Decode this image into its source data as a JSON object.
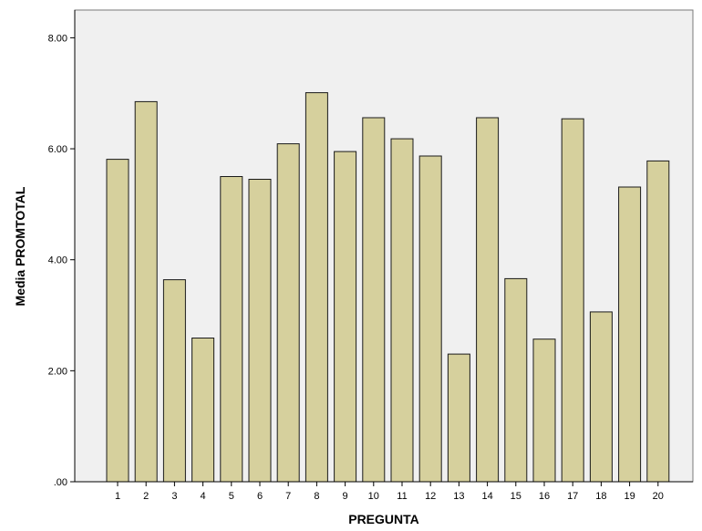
{
  "chart_data": {
    "type": "bar",
    "title": "",
    "xlabel": "PREGUNTA",
    "ylabel": "Media PROMTOTAL",
    "categories": [
      "1",
      "2",
      "3",
      "4",
      "5",
      "6",
      "7",
      "8",
      "9",
      "10",
      "11",
      "12",
      "13",
      "14",
      "15",
      "16",
      "17",
      "18",
      "19",
      "20"
    ],
    "values": [
      5.81,
      6.85,
      3.64,
      2.59,
      5.5,
      5.45,
      6.09,
      7.01,
      5.95,
      6.56,
      6.18,
      5.87,
      2.3,
      6.56,
      3.66,
      2.57,
      6.54,
      3.06,
      5.31,
      5.78
    ],
    "ylim": [
      0,
      8.5
    ],
    "yticks": [
      0,
      2,
      4,
      6,
      8
    ],
    "ytick_labels": [
      ".00",
      "2.00",
      "4.00",
      "6.00",
      "8.00"
    ],
    "grid": false,
    "colors": {
      "bar_fill": "#d6d09d",
      "bar_stroke": "#1a1a1a",
      "plot_background": "#f0f0f0",
      "axis": "#000000"
    }
  }
}
